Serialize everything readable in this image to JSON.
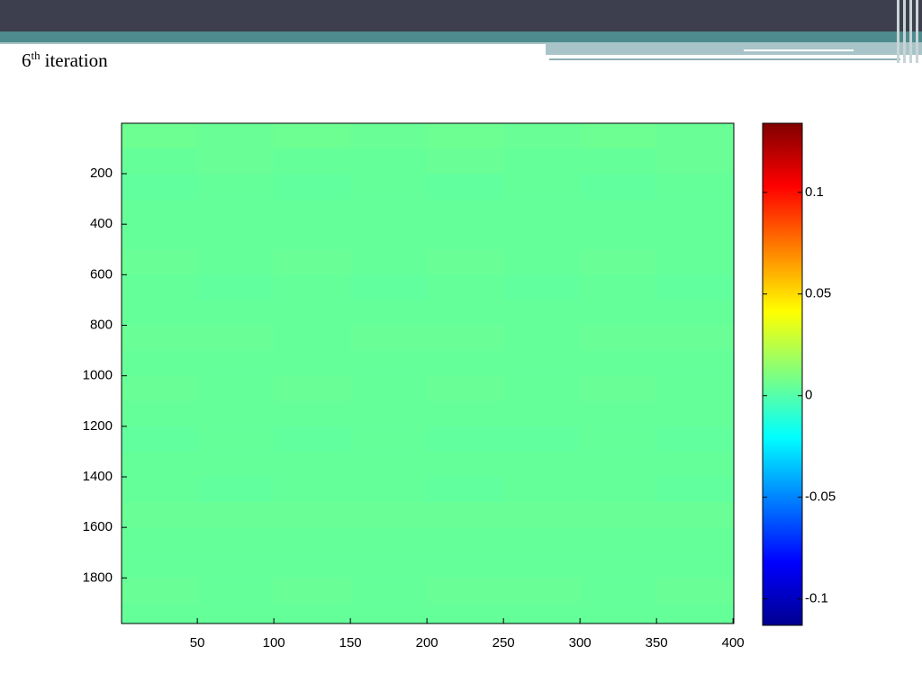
{
  "slide_title": {
    "number": "6",
    "sup": "th",
    "rest": "iteration"
  },
  "chart_data": {
    "type": "heatmap",
    "x_bins": [
      0.5,
      50,
      100,
      150,
      200,
      250,
      300,
      350,
      400.5
    ],
    "y_bins": [
      0.5,
      100,
      200,
      300,
      400,
      500,
      600,
      700,
      800,
      900,
      1000,
      1100,
      1200,
      1300,
      1400,
      1500,
      1600,
      1700,
      1800,
      1900,
      1980.5
    ],
    "values": [
      [
        0.006,
        0.005,
        0.006,
        0.005,
        0.006,
        0.005,
        0.006,
        0.005
      ],
      [
        0.004,
        0.005,
        0.004,
        0.004,
        0.005,
        0.004,
        0.004,
        0.005
      ],
      [
        0.003,
        0.004,
        0.003,
        0.004,
        0.003,
        0.004,
        0.003,
        0.004
      ],
      [
        0.004,
        0.004,
        0.004,
        0.004,
        0.004,
        0.004,
        0.004,
        0.004
      ],
      [
        0.004,
        0.004,
        0.004,
        0.004,
        0.004,
        0.004,
        0.004,
        0.004
      ],
      [
        0.005,
        0.004,
        0.005,
        0.004,
        0.005,
        0.004,
        0.005,
        0.004
      ],
      [
        0.004,
        0.003,
        0.004,
        0.003,
        0.004,
        0.003,
        0.004,
        0.003
      ],
      [
        0.004,
        0.004,
        0.004,
        0.004,
        0.004,
        0.004,
        0.004,
        0.004
      ],
      [
        0.005,
        0.005,
        0.004,
        0.005,
        0.005,
        0.004,
        0.005,
        0.005
      ],
      [
        0.004,
        0.004,
        0.004,
        0.004,
        0.004,
        0.004,
        0.004,
        0.004
      ],
      [
        0.005,
        0.004,
        0.005,
        0.004,
        0.005,
        0.004,
        0.005,
        0.004
      ],
      [
        0.004,
        0.004,
        0.004,
        0.004,
        0.004,
        0.004,
        0.004,
        0.004
      ],
      [
        0.003,
        0.004,
        0.003,
        0.004,
        0.003,
        0.003,
        0.004,
        0.003
      ],
      [
        0.004,
        0.004,
        0.004,
        0.004,
        0.004,
        0.004,
        0.004,
        0.004
      ],
      [
        0.004,
        0.003,
        0.004,
        0.004,
        0.003,
        0.004,
        0.004,
        0.003
      ],
      [
        0.005,
        0.005,
        0.005,
        0.005,
        0.005,
        0.005,
        0.005,
        0.005
      ],
      [
        0.004,
        0.004,
        0.004,
        0.004,
        0.004,
        0.004,
        0.004,
        0.004
      ],
      [
        0.004,
        0.004,
        0.004,
        0.004,
        0.004,
        0.004,
        0.004,
        0.004
      ],
      [
        0.005,
        0.004,
        0.005,
        0.004,
        0.005,
        0.005,
        0.004,
        0.005
      ],
      [
        0.004,
        0.004,
        0.004,
        0.004,
        0.004,
        0.004,
        0.004,
        0.004
      ]
    ],
    "xlim": [
      0.5,
      400.5
    ],
    "ylim": [
      0.5,
      1980.5
    ],
    "y_reversed": true,
    "xticks": [
      50,
      100,
      150,
      200,
      250,
      300,
      350,
      400
    ],
    "yticks": [
      200,
      400,
      600,
      800,
      1000,
      1200,
      1400,
      1600,
      1800
    ],
    "colormap": "jet",
    "clim": [
      -0.113,
      0.134
    ],
    "cticks": [
      -0.1,
      -0.05,
      0,
      0.05,
      0.1
    ]
  }
}
